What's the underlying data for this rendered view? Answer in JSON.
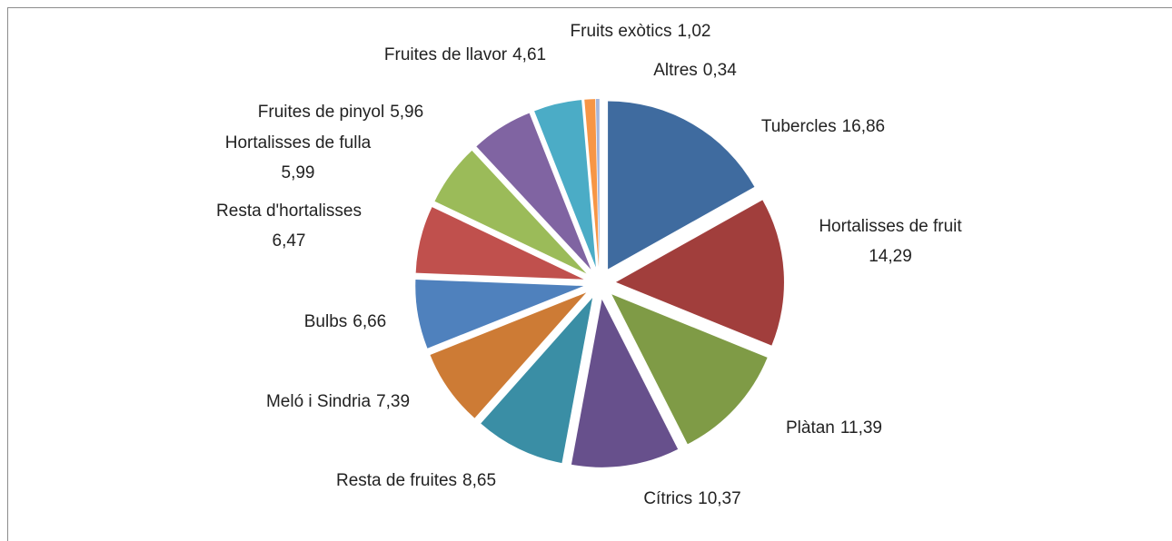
{
  "chart_data": {
    "type": "pie",
    "categories": [
      "Tubercles",
      "Hortalisses de fruit",
      "Plàtan",
      "Cítrics",
      "Resta de fruites",
      "Meló i Sindria",
      "Bulbs",
      "Resta d'hortalisses",
      "Hortalisses de fulla",
      "Fruites de pinyol",
      "Fruites de llavor",
      "Fruits exòtics",
      "Altres"
    ],
    "values": [
      16.86,
      14.29,
      11.39,
      10.37,
      8.65,
      7.39,
      6.66,
      6.47,
      5.99,
      5.96,
      4.61,
      1.02,
      0.34
    ],
    "value_labels": [
      "16,86",
      "14,29",
      "11,39",
      "10,37",
      "8,65",
      "7,39",
      "6,66",
      "6,47",
      "5,99",
      "5,96",
      "4,61",
      "1,02",
      "0,34"
    ],
    "colors": [
      "#3f6b9f",
      "#a13e3c",
      "#7f9b46",
      "#67508c",
      "#3a8ea5",
      "#cd7b35",
      "#4f81bd",
      "#c0504d",
      "#9bbb59",
      "#8064a2",
      "#4bacc6",
      "#f79646",
      "#a5b6dc"
    ]
  }
}
